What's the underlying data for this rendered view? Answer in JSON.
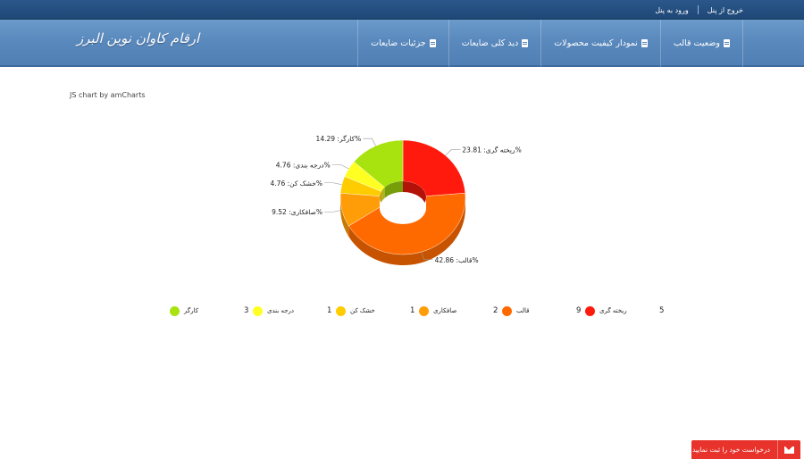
{
  "topbar": {
    "links": [
      "ورود به پنل",
      "خروج از پنل"
    ]
  },
  "header": {
    "brand": "ارقام کاوان نوین البرز",
    "nav": [
      {
        "label": "وضعیت قالب",
        "icon": "document-icon"
      },
      {
        "label": "نمودار کیفیت محصولات",
        "icon": "document-icon"
      },
      {
        "label": "دید کلی ضایعات",
        "icon": "document-icon"
      },
      {
        "label": "جزئیات ضایعات",
        "icon": "document-icon"
      }
    ]
  },
  "credit": "JS chart by amCharts",
  "chart_data": {
    "type": "pie",
    "style": "3d-donut",
    "categories": [
      "ریخته گری",
      "قالب",
      "صافکاری",
      "خشک کن",
      "درجه بندی",
      "کارگر"
    ],
    "values": [
      5,
      9,
      2,
      1,
      1,
      3
    ],
    "percent_labels": [
      "23.81",
      "42.86",
      "9.52",
      "4.76",
      "4.76",
      "14.29"
    ],
    "colors": [
      "#ff1a0d",
      "#ff6a00",
      "#ff9d08",
      "#ffcc00",
      "#ffff22",
      "#a8e20f"
    ],
    "legend_position": "bottom"
  },
  "request_button": {
    "label": "درخواست خود را ثبت نمایید",
    "icon": "envelope-icon"
  }
}
